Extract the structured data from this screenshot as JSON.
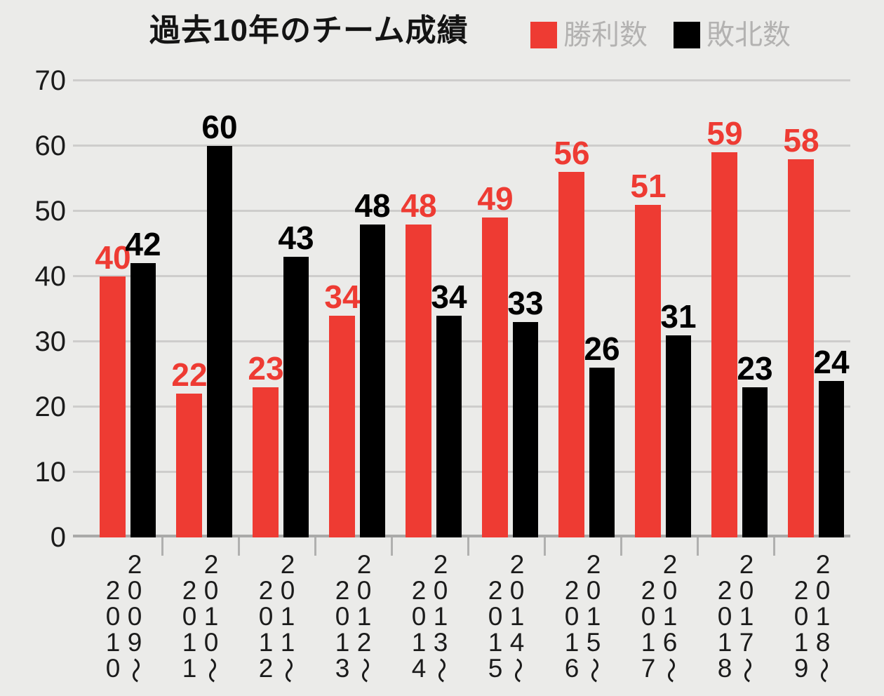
{
  "header": {
    "title": "過去10年のチーム成績"
  },
  "chart_data": {
    "type": "bar",
    "title": "過去10年のチーム成績",
    "categories": [
      "2009〜2010",
      "2010〜2011",
      "2011〜2012",
      "2012〜2013",
      "2013〜2014",
      "2014〜2015",
      "2015〜2016",
      "2016〜2017",
      "2017〜2018",
      "2018〜2019"
    ],
    "series": [
      {
        "name": "勝利数",
        "color": "#ee3b33",
        "values": [
          40,
          22,
          23,
          34,
          48,
          49,
          56,
          51,
          59,
          58
        ]
      },
      {
        "name": "敗北数",
        "color": "#000000",
        "values": [
          42,
          60,
          43,
          48,
          34,
          33,
          26,
          31,
          23,
          24
        ]
      }
    ],
    "xlabel": "",
    "ylabel": "",
    "ylim": [
      0,
      70
    ],
    "y_ticks": [
      0,
      10,
      20,
      30,
      40,
      50,
      60,
      70
    ],
    "grid": true,
    "legend_position": "top",
    "value_labels": true,
    "x_label_orientation": "vertical"
  },
  "colors": {
    "background": "#ebebe9",
    "grid_line": "#cecdcc",
    "axis_line": "#a9a9a8",
    "tick_mark": "#b0b0af",
    "legend_text": "#b3b2b1",
    "axis_label_text": "#1b1b1b",
    "win_bar": "#ee3b33",
    "loss_bar": "#000000"
  }
}
